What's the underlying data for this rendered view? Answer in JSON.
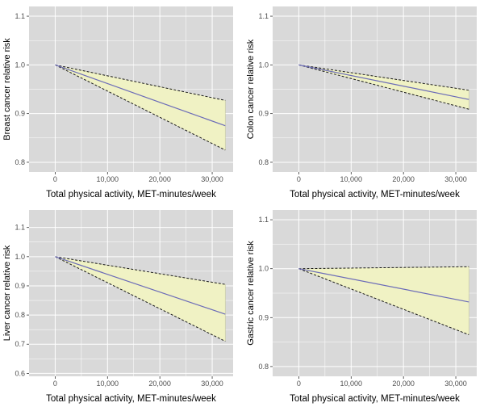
{
  "colors": {
    "panel_bg": "#d9d9d9",
    "grid": "#ffffff",
    "band_fill": "#f0f2c4",
    "bound_line": "#1a1a1a",
    "estimate_line": "#6b6bb8",
    "tick_text": "#4d4d4d"
  },
  "chart_data": [
    {
      "type": "line",
      "xlabel": "Total physical activity, MET-minutes/week",
      "ylabel": "Breast cancer relative risk",
      "xlim": [
        -5000,
        34000
      ],
      "ylim": [
        0.78,
        1.12
      ],
      "xticks": [
        0,
        10000,
        20000,
        30000
      ],
      "xtick_labels": [
        "0",
        "10,000",
        "20,000",
        "30,000"
      ],
      "yticks": [
        0.8,
        0.9,
        1.0,
        1.1
      ],
      "ytick_labels": [
        "0.8",
        "0.9",
        "1.0",
        "1.1"
      ],
      "grid": true,
      "x": [
        0,
        32500
      ],
      "estimate": [
        1.0,
        0.875
      ],
      "lower": [
        1.0,
        0.825
      ],
      "upper": [
        1.0,
        0.927
      ]
    },
    {
      "type": "line",
      "xlabel": "Total physical activity, MET-minutes/week",
      "ylabel": "Colon cancer relative risk",
      "xlim": [
        -5000,
        34000
      ],
      "ylim": [
        0.78,
        1.12
      ],
      "xticks": [
        0,
        10000,
        20000,
        30000
      ],
      "xtick_labels": [
        "0",
        "10,000",
        "20,000",
        "30,000"
      ],
      "yticks": [
        0.8,
        0.9,
        1.0,
        1.1
      ],
      "ytick_labels": [
        "0.8",
        "0.9",
        "1.0",
        "1.1"
      ],
      "grid": true,
      "x": [
        0,
        32500
      ],
      "estimate": [
        1.0,
        0.929
      ],
      "lower": [
        1.0,
        0.909
      ],
      "upper": [
        1.0,
        0.948
      ]
    },
    {
      "type": "line",
      "xlabel": "Total physical activity, MET-minutes/week",
      "ylabel": "Liver cancer relative risk",
      "xlim": [
        -5000,
        34000
      ],
      "ylim": [
        0.59,
        1.16
      ],
      "xticks": [
        0,
        10000,
        20000,
        30000
      ],
      "xtick_labels": [
        "0",
        "10,000",
        "20,000",
        "30,000"
      ],
      "yticks": [
        0.6,
        0.7,
        0.8,
        0.9,
        1.0,
        1.1
      ],
      "ytick_labels": [
        "0.6",
        "0.7",
        "0.8",
        "0.9",
        "1.0",
        "1.1"
      ],
      "grid": true,
      "x": [
        0,
        32500
      ],
      "estimate": [
        1.0,
        0.803
      ],
      "lower": [
        1.0,
        0.71
      ],
      "upper": [
        1.0,
        0.905
      ]
    },
    {
      "type": "line",
      "xlabel": "Total physical activity, MET-minutes/week",
      "ylabel": "Gastric cancer relative risk",
      "xlim": [
        -5000,
        34000
      ],
      "ylim": [
        0.78,
        1.12
      ],
      "xticks": [
        0,
        10000,
        20000,
        30000
      ],
      "xtick_labels": [
        "0",
        "10,000",
        "20,000",
        "30,000"
      ],
      "yticks": [
        0.8,
        0.9,
        1.0,
        1.1
      ],
      "ytick_labels": [
        "0.8",
        "0.9",
        "1.0",
        "1.1"
      ],
      "grid": true,
      "x": [
        0,
        32500
      ],
      "estimate": [
        1.0,
        0.932
      ],
      "lower": [
        1.0,
        0.865
      ],
      "upper": [
        1.0,
        1.004
      ]
    }
  ]
}
